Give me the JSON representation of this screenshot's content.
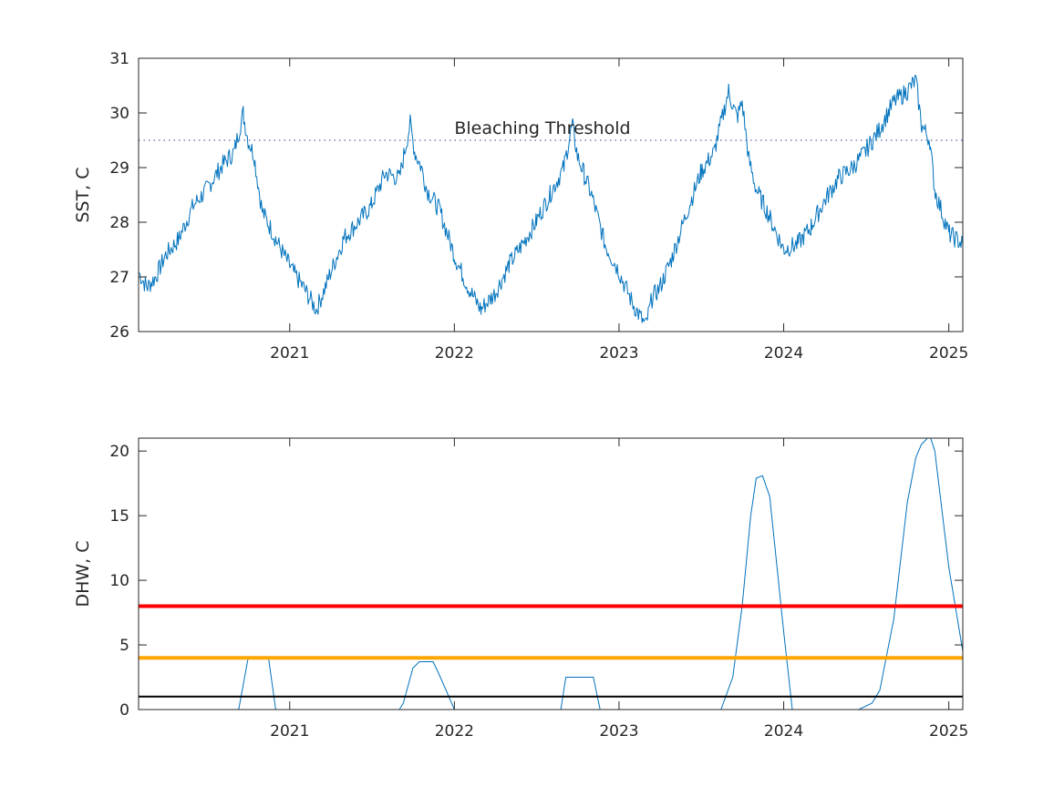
{
  "chart_data": [
    {
      "type": "line",
      "ylabel": "SST, C",
      "xlabel": "",
      "xlim": [
        "2020-02-01",
        "2025-02-01"
      ],
      "ylim": [
        26,
        31
      ],
      "xticks": [
        "2021",
        "2022",
        "2023",
        "2024",
        "2025"
      ],
      "yticks": [
        "26",
        "27",
        "28",
        "29",
        "30",
        "31"
      ],
      "grid": false,
      "series_color": "#0072BD",
      "annotation": {
        "text": "Bleaching Threshold",
        "y": 29.5
      },
      "threshold": {
        "y": 29.5,
        "style": "dotted",
        "color": "#3a3a8a"
      },
      "series": [
        {
          "x": [
            "2020-02-01",
            "2020-02-20",
            "2020-03-10",
            "2020-04-01",
            "2020-05-01",
            "2020-06-01",
            "2020-07-01",
            "2020-08-01",
            "2020-09-01",
            "2020-09-20",
            "2020-10-01",
            "2020-10-15",
            "2020-11-01",
            "2020-12-01",
            "2021-01-01",
            "2021-02-01",
            "2021-03-01",
            "2021-03-25",
            "2021-05-01",
            "2021-06-01",
            "2021-07-01",
            "2021-08-01",
            "2021-09-01",
            "2021-09-25",
            "2021-10-05",
            "2021-10-20",
            "2021-11-01",
            "2021-12-01",
            "2022-01-01",
            "2022-02-01",
            "2022-03-01",
            "2022-04-01",
            "2022-05-01",
            "2022-06-01",
            "2022-07-01",
            "2022-08-01",
            "2022-09-01",
            "2022-09-20",
            "2022-10-01",
            "2022-10-15",
            "2022-11-01",
            "2022-12-01",
            "2023-01-01",
            "2023-02-01",
            "2023-03-01",
            "2023-03-15",
            "2023-04-01",
            "2023-05-01",
            "2023-06-01",
            "2023-07-01",
            "2023-08-01",
            "2023-09-01",
            "2023-09-20",
            "2023-10-01",
            "2023-10-15",
            "2023-11-01",
            "2023-12-01",
            "2024-01-01",
            "2024-02-01",
            "2024-03-01",
            "2024-04-01",
            "2024-05-01",
            "2024-06-01",
            "2024-07-01",
            "2024-08-01",
            "2024-09-01",
            "2024-10-01",
            "2024-10-20",
            "2024-11-01",
            "2024-11-20",
            "2024-12-01",
            "2025-01-01",
            "2025-02-01"
          ],
          "y": [
            27.1,
            26.8,
            27.0,
            27.4,
            27.7,
            28.3,
            28.6,
            29.0,
            29.3,
            30.0,
            29.5,
            29.2,
            28.2,
            27.7,
            27.2,
            26.8,
            26.4,
            26.9,
            27.7,
            28.0,
            28.3,
            28.9,
            28.8,
            29.8,
            29.3,
            29.0,
            28.6,
            28.2,
            27.4,
            26.8,
            26.4,
            26.7,
            27.2,
            27.6,
            28.0,
            28.5,
            29.0,
            29.8,
            29.2,
            28.9,
            28.5,
            27.6,
            27.1,
            26.5,
            26.1,
            26.6,
            26.8,
            27.4,
            28.2,
            28.9,
            29.3,
            30.4,
            29.9,
            30.2,
            29.2,
            28.6,
            28.1,
            27.5,
            27.6,
            27.9,
            28.4,
            28.8,
            29.0,
            29.3,
            29.7,
            30.2,
            30.4,
            30.6,
            29.8,
            29.5,
            28.6,
            27.8,
            27.6
          ]
        }
      ]
    },
    {
      "type": "line",
      "ylabel": "DHW, C",
      "xlabel": "",
      "xlim": [
        "2020-02-01",
        "2025-02-01"
      ],
      "ylim": [
        0,
        21
      ],
      "xticks": [
        "2021",
        "2022",
        "2023",
        "2024",
        "2025"
      ],
      "yticks": [
        "0",
        "5",
        "10",
        "15",
        "20"
      ],
      "grid": false,
      "series_color": "#0072BD",
      "reference_lines": [
        {
          "y": 8,
          "color": "#FF0000"
        },
        {
          "y": 4,
          "color": "#FFA500"
        },
        {
          "y": 1,
          "color": "#000000"
        }
      ],
      "series": [
        {
          "x": [
            "2020-02-01",
            "2020-09-10",
            "2020-10-01",
            "2020-11-15",
            "2020-12-01",
            "2021-09-01",
            "2021-09-10",
            "2021-10-01",
            "2021-10-15",
            "2021-11-15",
            "2021-12-01",
            "2022-01-01",
            "2022-01-10",
            "2022-08-25",
            "2022-09-05",
            "2022-11-05",
            "2022-11-20",
            "2023-08-15",
            "2023-09-10",
            "2023-10-01",
            "2023-10-20",
            "2023-11-01",
            "2023-11-15",
            "2023-12-01",
            "2024-01-01",
            "2024-01-20",
            "2024-06-15",
            "2024-07-15",
            "2024-08-01",
            "2024-09-01",
            "2024-10-01",
            "2024-10-20",
            "2024-11-01",
            "2024-11-20",
            "2024-12-01",
            "2025-01-01",
            "2025-02-01"
          ],
          "y": [
            0,
            0,
            4,
            4,
            0,
            0,
            0.5,
            3.2,
            3.7,
            3.7,
            2.5,
            0,
            0,
            0,
            2.5,
            2.5,
            0,
            0,
            2.5,
            8,
            15,
            17.9,
            18.1,
            16.5,
            6,
            0,
            0,
            0.5,
            1.5,
            7,
            16,
            19.5,
            20.5,
            21.2,
            20,
            11,
            4.5
          ]
        }
      ]
    }
  ]
}
